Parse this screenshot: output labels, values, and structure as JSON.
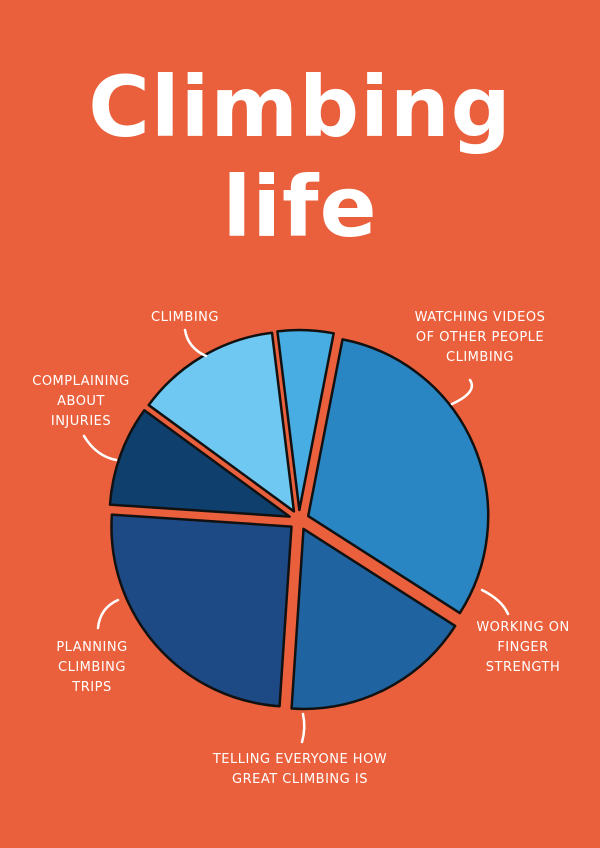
{
  "title": {
    "line1": "Climbing",
    "line2": "life"
  },
  "colors": {
    "background": "#EA603C",
    "outline": "#111111",
    "text": "#ffffff"
  },
  "chart_data": {
    "type": "pie",
    "title": "Climbing life",
    "exploded": true,
    "slices": [
      {
        "label": "WATCHING VIDEOS\nOF OTHER PEOPLE\nCLIMBING",
        "value": 31,
        "color": "#2A85C3"
      },
      {
        "label": "WORKING ON\nFINGER\nSTRENGTH",
        "value": 17,
        "color": "#1F64A0"
      },
      {
        "label": "TELLING EVERYONE HOW\nGREAT CLIMBING IS",
        "value": 25,
        "color": "#1D4A85"
      },
      {
        "label": "PLANNING\nCLIMBING\nTRIPS",
        "value": 9,
        "color": "#0F3F6C"
      },
      {
        "label": "COMPLAINING\nABOUT\nINJURIES",
        "value": 13,
        "color": "#6FC8F2"
      },
      {
        "label": "CLIMBING",
        "value": 5,
        "color": "#47ADE3"
      }
    ]
  }
}
